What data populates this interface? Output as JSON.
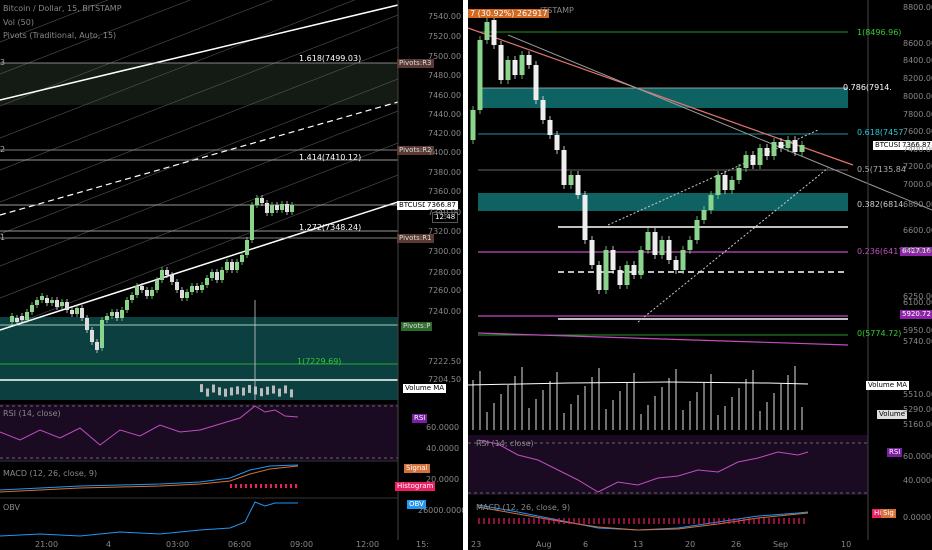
{
  "left_chart": {
    "symbol_title": "Bitcoin / Dollar, 15, BITSTAMP",
    "vol_label": "Vol (50)",
    "pivots_label": "Pivots (Traditional, Auto, 15)",
    "price_axis": [
      "7540.00",
      "7520.00",
      "7500.00",
      "7480.00",
      "7460.00",
      "7440.00",
      "7420.00",
      "7400.00",
      "7380.00",
      "7360.00",
      "7340.00",
      "7320.00",
      "7300.00",
      "7280.00",
      "7260.00",
      "7240.00",
      "7222.50",
      "7204.50"
    ],
    "fib_levels": [
      {
        "label": "1.618(7499.03)"
      },
      {
        "label": "1.414(7410.12)"
      },
      {
        "label": "1.272(7348.24)"
      },
      {
        "label": "1(7229.69)"
      }
    ],
    "pivot_tags": [
      "Pivots:R3",
      "Pivots:R2",
      "Pivots:R1",
      "Pivots:P"
    ],
    "left_marks": [
      "3",
      "2",
      "1"
    ],
    "price_tag": "BTCUSD",
    "price_value": "7366.87",
    "countdown": "12:48",
    "volume_ma": "Volume MA",
    "rsi_title": "RSI (14, close)",
    "rsi_tag": "RSI",
    "rsi_axis": [
      "60.0000",
      "40.0000"
    ],
    "macd_title": "MACD (12, 26, close, 9)",
    "macd_tags": [
      "Signal",
      "Histogram"
    ],
    "macd_axis": [
      "20.0000"
    ],
    "obv_title": "OBV",
    "obv_tag": "OBV",
    "obv_axis": [
      "26000.0000"
    ],
    "time_axis": [
      "21:00",
      "4",
      "03:00",
      "06:00",
      "09:00",
      "12:00",
      "15:"
    ]
  },
  "right_chart": {
    "header": "7 (30.92%) 262917",
    "header_tail": "ITSTAMP",
    "price_axis": [
      "8800.00",
      "8600.00",
      "8400.00",
      "8200.00",
      "8000.00",
      "7800.00",
      "7600.00",
      "7400.00",
      "7200.00",
      "7000.00",
      "6800.00",
      "6600.00",
      "6400.00",
      "6250.00",
      "6100.00",
      "5950.00",
      "5740.00",
      "5510.00",
      "5290.00",
      "5160.00"
    ],
    "fib_levels": [
      {
        "label": "1(8496.96)"
      },
      {
        "label": "0.786(7914."
      },
      {
        "label": "0.618(7457."
      },
      {
        "label": "0.5(7135.84"
      },
      {
        "label": "0.382(6814."
      },
      {
        "label": "0.236(6417."
      },
      {
        "label": "0(5774.72)"
      }
    ],
    "price_tag": "BTCUSD",
    "price_value": "7366.87",
    "level_tags": [
      "6427.16",
      "5920.72"
    ],
    "volume_ma": "Volume MA",
    "volume_tag": "Volume",
    "rsi_title": "RSI (14, close)",
    "rsi_tag": "RSI",
    "rsi_axis": [
      "60.0000",
      "40.0000"
    ],
    "macd_title": "MACD (12, 26, close, 9)",
    "macd_tags": [
      "Hi",
      "Sig"
    ],
    "macd_axis": [
      "0.0000"
    ],
    "time_axis": [
      "23",
      "Aug",
      "6",
      "13",
      "20",
      "26",
      "Sep",
      "10"
    ]
  }
}
